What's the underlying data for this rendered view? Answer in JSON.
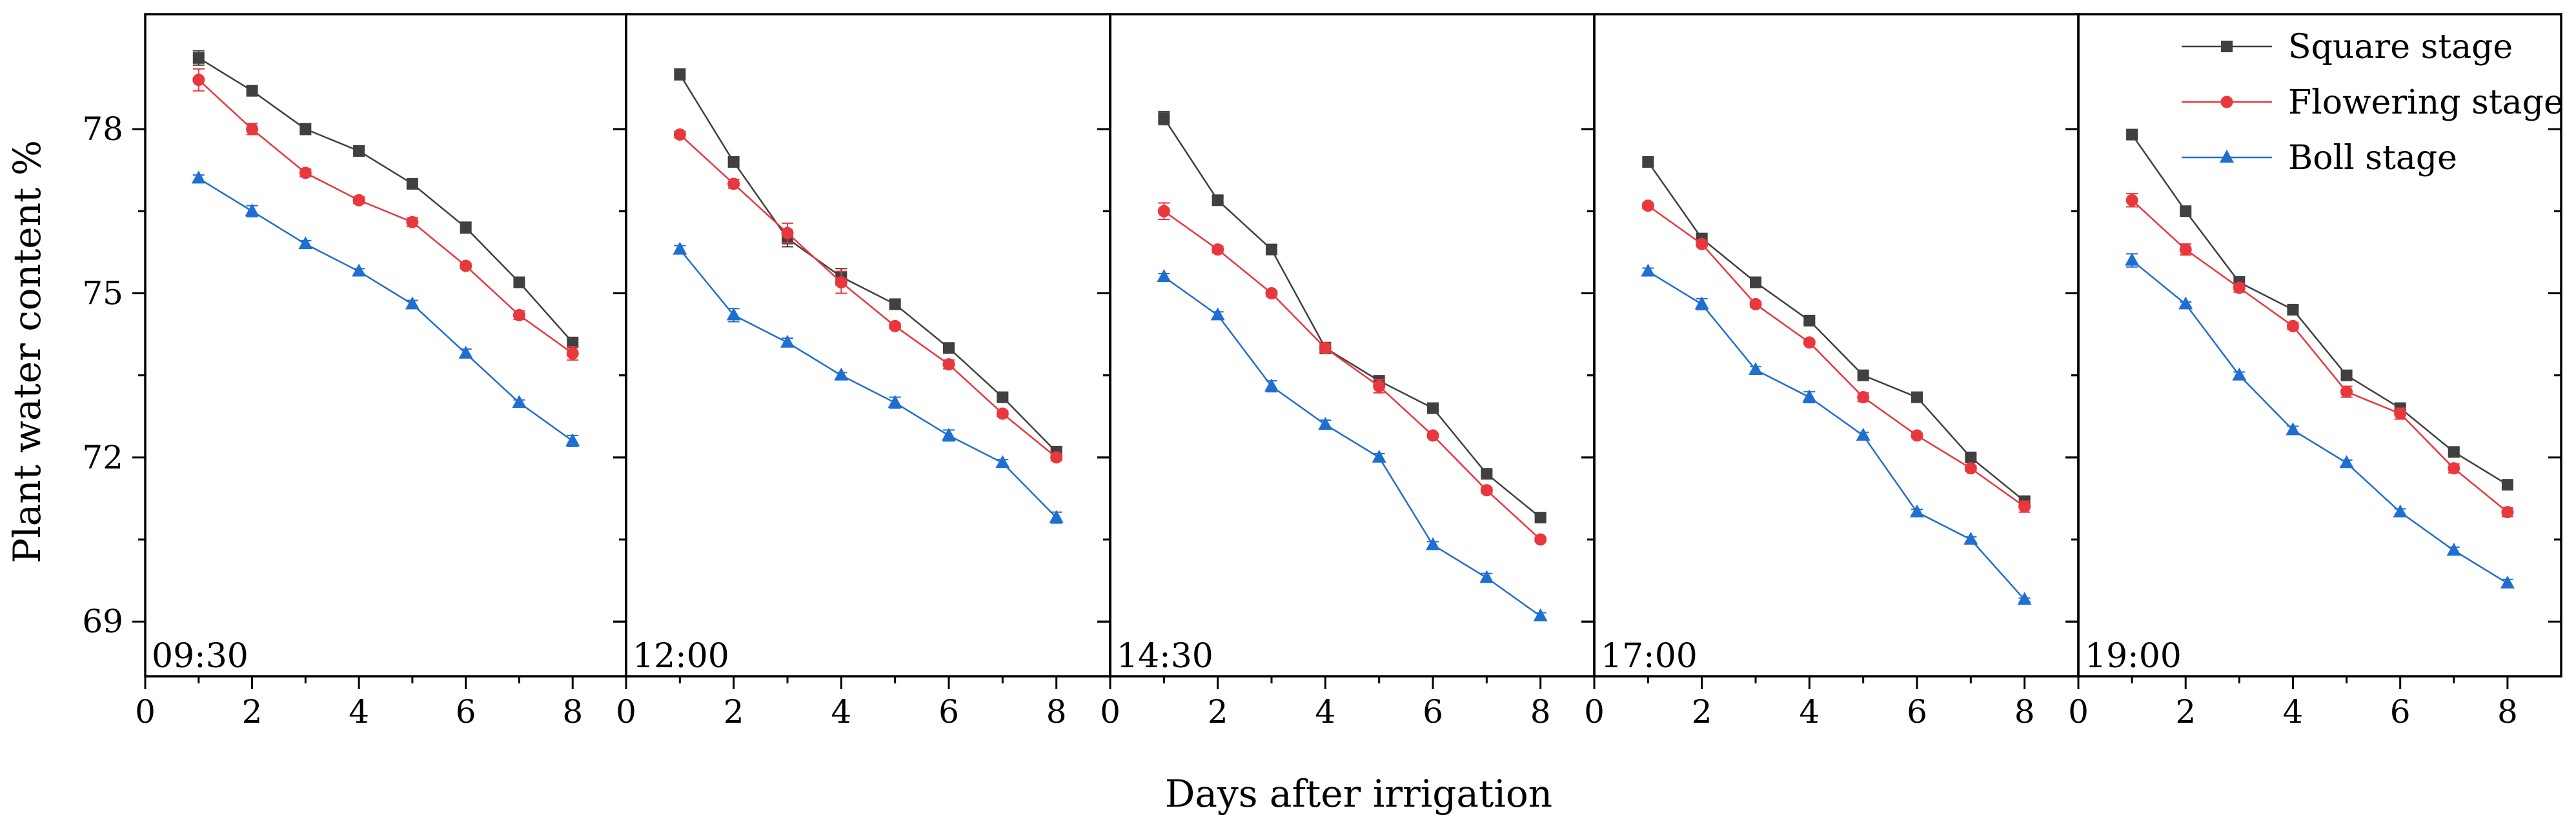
{
  "chart_data": {
    "type": "line",
    "xlabel": "Days after irrigation",
    "ylabel": "Plant water content  %",
    "xlim": [
      0,
      9
    ],
    "ylim": [
      68,
      80.1
    ],
    "x_ticks": [
      "0",
      "2",
      "4",
      "6",
      "8"
    ],
    "y_ticks": [
      "69",
      "72",
      "75",
      "78"
    ],
    "x": [
      1,
      2,
      3,
      4,
      5,
      6,
      7,
      8
    ],
    "legend": {
      "placement": "top-right",
      "entries": [
        "Square stage",
        "Flowering stage",
        "Boll stage"
      ]
    },
    "series_styles": [
      {
        "name": "Square stage",
        "color": "#404040",
        "marker": "square"
      },
      {
        "name": "Flowering stage",
        "color": "#e8383d",
        "marker": "circle"
      },
      {
        "name": "Boll stage",
        "color": "#1f6fd1",
        "marker": "triangle"
      }
    ],
    "panels": [
      {
        "label": "09:30",
        "series": [
          {
            "name": "Square stage",
            "values": [
              79.3,
              78.7,
              78.0,
              77.6,
              77.0,
              76.2,
              75.2,
              74.1
            ],
            "errors": [
              0.13,
              0.05,
              0.1,
              0.07,
              0.06,
              0.1,
              0.05,
              0.06
            ]
          },
          {
            "name": "Flowering stage",
            "values": [
              78.9,
              78.0,
              77.2,
              76.7,
              76.3,
              75.5,
              74.6,
              73.9
            ],
            "errors": [
              0.2,
              0.1,
              0.07,
              0.06,
              0.08,
              0.05,
              0.08,
              0.12
            ]
          },
          {
            "name": "Boll stage",
            "values": [
              77.1,
              76.5,
              75.9,
              75.4,
              74.8,
              73.9,
              73.0,
              72.3
            ],
            "errors": [
              0.06,
              0.1,
              0.06,
              0.05,
              0.07,
              0.08,
              0.05,
              0.1
            ]
          }
        ]
      },
      {
        "label": "12:00",
        "series": [
          {
            "name": "Square stage",
            "values": [
              79.0,
              77.4,
              76.0,
              75.3,
              74.8,
              74.0,
              73.1,
              72.1
            ],
            "errors": [
              0.1,
              0.06,
              0.15,
              0.15,
              0.06,
              0.08,
              0.06,
              0.1
            ]
          },
          {
            "name": "Flowering stage",
            "values": [
              77.9,
              77.0,
              76.1,
              75.2,
              74.4,
              73.7,
              72.8,
              72.0
            ],
            "errors": [
              0.06,
              0.08,
              0.18,
              0.2,
              0.05,
              0.08,
              0.05,
              0.06
            ]
          },
          {
            "name": "Boll stage",
            "values": [
              75.8,
              74.6,
              74.1,
              73.5,
              73.0,
              72.4,
              71.9,
              70.9
            ],
            "errors": [
              0.07,
              0.12,
              0.08,
              0.05,
              0.1,
              0.1,
              0.06,
              0.1
            ]
          }
        ]
      },
      {
        "label": "14:30",
        "series": [
          {
            "name": "Square stage",
            "values": [
              78.2,
              76.7,
              75.8,
              74.0,
              73.4,
              72.9,
              71.7,
              70.9
            ],
            "errors": [
              0.12,
              0.06,
              0.07,
              0.1,
              0.08,
              0.05,
              0.04,
              0.05
            ]
          },
          {
            "name": "Flowering stage",
            "values": [
              76.5,
              75.8,
              75.0,
              74.0,
              73.3,
              72.4,
              71.4,
              70.5
            ],
            "errors": [
              0.15,
              0.06,
              0.05,
              0.08,
              0.12,
              0.04,
              0.05,
              0.04
            ]
          },
          {
            "name": "Boll stage",
            "values": [
              75.3,
              74.6,
              73.3,
              72.6,
              72.0,
              70.4,
              69.8,
              69.1
            ],
            "errors": [
              0.06,
              0.06,
              0.1,
              0.08,
              0.07,
              0.06,
              0.08,
              0.06
            ]
          }
        ]
      },
      {
        "label": "17:00",
        "series": [
          {
            "name": "Square stage",
            "values": [
              77.4,
              76.0,
              75.2,
              74.5,
              73.5,
              73.1,
              72.0,
              71.2
            ],
            "errors": [
              0.07,
              0.06,
              0.07,
              0.04,
              0.06,
              0.05,
              0.05,
              0.08
            ]
          },
          {
            "name": "Flowering stage",
            "values": [
              76.6,
              75.9,
              74.8,
              74.1,
              73.1,
              72.4,
              71.8,
              71.1
            ],
            "errors": [
              0.05,
              0.05,
              0.05,
              0.04,
              0.08,
              0.04,
              0.05,
              0.1
            ]
          },
          {
            "name": "Boll stage",
            "values": [
              75.4,
              74.8,
              73.6,
              73.1,
              72.4,
              71.0,
              70.5,
              69.4
            ],
            "errors": [
              0.06,
              0.1,
              0.06,
              0.1,
              0.06,
              0.05,
              0.05,
              0.03
            ]
          }
        ]
      },
      {
        "label": "19:00",
        "series": [
          {
            "name": "Square stage",
            "values": [
              77.9,
              76.5,
              75.2,
              74.7,
              73.5,
              72.9,
              72.1,
              71.5
            ],
            "errors": [
              0.07,
              0.06,
              0.1,
              0.04,
              0.06,
              0.08,
              0.05,
              0.05
            ]
          },
          {
            "name": "Flowering stage",
            "values": [
              76.7,
              75.8,
              75.1,
              74.4,
              73.2,
              72.8,
              71.8,
              71.0
            ],
            "errors": [
              0.12,
              0.1,
              0.08,
              0.06,
              0.1,
              0.1,
              0.08,
              0.08
            ]
          },
          {
            "name": "Boll stage",
            "values": [
              75.6,
              74.8,
              73.5,
              72.5,
              71.9,
              71.0,
              70.3,
              69.7
            ],
            "errors": [
              0.12,
              0.04,
              0.06,
              0.07,
              0.05,
              0.06,
              0.06,
              0.07
            ]
          }
        ]
      }
    ]
  }
}
